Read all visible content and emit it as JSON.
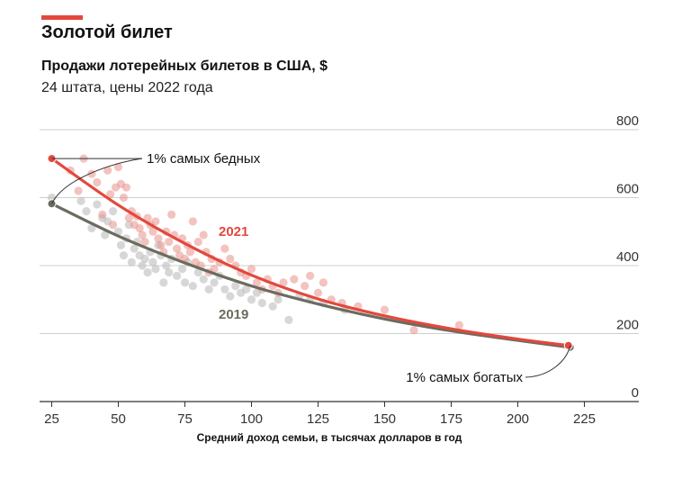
{
  "header": {
    "kicker": "Золотой билет",
    "title": "Продажи лотерейных билетов в США, $",
    "subtitle": "24 штата, цены 2022 года"
  },
  "colors": {
    "accent": "#e3483d",
    "series_2021": "#e3483d",
    "series_2019": "#6b6b5f",
    "scatter_2021": "#e8928a",
    "scatter_2019": "#bdbdbd",
    "grid": "#cfcfcf",
    "axis": "#333333"
  },
  "chart_data": {
    "type": "scatter",
    "title": "Продажи лотерейных билетов в США, $",
    "subtitle": "24 штата, цены 2022 года",
    "xlabel": "Средний доход семьи, в тысячах долларов в год",
    "ylabel": "",
    "xlim": [
      22,
      240
    ],
    "ylim": [
      0,
      800
    ],
    "x_ticks": [
      25,
      50,
      75,
      100,
      125,
      150,
      175,
      200,
      225
    ],
    "y_ticks": [
      0,
      200,
      400,
      600,
      800
    ],
    "grid": "horizontal",
    "series": [
      {
        "name": "2021",
        "kind": "trend",
        "points": [
          [
            25,
            715
          ],
          [
            50,
            578
          ],
          [
            75,
            465
          ],
          [
            100,
            372
          ],
          [
            125,
            302
          ],
          [
            150,
            252
          ],
          [
            175,
            214
          ],
          [
            200,
            184
          ],
          [
            219,
            165
          ]
        ]
      },
      {
        "name": "2019",
        "kind": "trend",
        "points": [
          [
            25,
            582
          ],
          [
            50,
            487
          ],
          [
            75,
            408
          ],
          [
            100,
            340
          ],
          [
            125,
            287
          ],
          [
            150,
            243
          ],
          [
            175,
            208
          ],
          [
            200,
            180
          ],
          [
            219,
            160
          ]
        ]
      },
      {
        "name": "2021",
        "kind": "points",
        "points": [
          [
            32,
            680
          ],
          [
            35,
            620
          ],
          [
            37,
            715
          ],
          [
            40,
            670
          ],
          [
            42,
            645
          ],
          [
            44,
            550
          ],
          [
            46,
            680
          ],
          [
            47,
            610
          ],
          [
            48,
            520
          ],
          [
            49,
            630
          ],
          [
            50,
            690
          ],
          [
            51,
            640
          ],
          [
            52,
            600
          ],
          [
            53,
            630
          ],
          [
            54,
            540
          ],
          [
            55,
            560
          ],
          [
            56,
            520
          ],
          [
            57,
            545
          ],
          [
            58,
            510
          ],
          [
            59,
            490
          ],
          [
            60,
            470
          ],
          [
            61,
            540
          ],
          [
            62,
            520
          ],
          [
            63,
            500
          ],
          [
            64,
            530
          ],
          [
            65,
            480
          ],
          [
            66,
            460
          ],
          [
            67,
            440
          ],
          [
            68,
            500
          ],
          [
            69,
            470
          ],
          [
            70,
            550
          ],
          [
            71,
            490
          ],
          [
            72,
            450
          ],
          [
            73,
            430
          ],
          [
            74,
            480
          ],
          [
            75,
            420
          ],
          [
            76,
            460
          ],
          [
            77,
            440
          ],
          [
            78,
            530
          ],
          [
            79,
            410
          ],
          [
            80,
            470
          ],
          [
            81,
            400
          ],
          [
            82,
            490
          ],
          [
            83,
            440
          ],
          [
            84,
            380
          ],
          [
            85,
            420
          ],
          [
            86,
            390
          ],
          [
            88,
            410
          ],
          [
            90,
            450
          ],
          [
            92,
            420
          ],
          [
            94,
            400
          ],
          [
            96,
            380
          ],
          [
            98,
            370
          ],
          [
            100,
            390
          ],
          [
            102,
            350
          ],
          [
            104,
            330
          ],
          [
            106,
            360
          ],
          [
            108,
            340
          ],
          [
            110,
            320
          ],
          [
            112,
            350
          ],
          [
            116,
            360
          ],
          [
            120,
            340
          ],
          [
            122,
            370
          ],
          [
            125,
            320
          ],
          [
            127,
            350
          ],
          [
            130,
            300
          ],
          [
            134,
            290
          ],
          [
            140,
            280
          ],
          [
            150,
            270
          ],
          [
            161,
            210
          ],
          [
            178,
            225
          ]
        ]
      },
      {
        "name": "2019",
        "kind": "points",
        "points": [
          [
            25,
            600
          ],
          [
            36,
            590
          ],
          [
            38,
            560
          ],
          [
            40,
            510
          ],
          [
            42,
            580
          ],
          [
            44,
            540
          ],
          [
            45,
            490
          ],
          [
            46,
            530
          ],
          [
            48,
            560
          ],
          [
            50,
            500
          ],
          [
            51,
            460
          ],
          [
            52,
            430
          ],
          [
            53,
            480
          ],
          [
            54,
            520
          ],
          [
            55,
            410
          ],
          [
            56,
            450
          ],
          [
            57,
            470
          ],
          [
            58,
            430
          ],
          [
            59,
            400
          ],
          [
            60,
            420
          ],
          [
            61,
            380
          ],
          [
            62,
            440
          ],
          [
            63,
            410
          ],
          [
            64,
            390
          ],
          [
            65,
            460
          ],
          [
            66,
            430
          ],
          [
            67,
            350
          ],
          [
            68,
            400
          ],
          [
            69,
            380
          ],
          [
            70,
            420
          ],
          [
            72,
            370
          ],
          [
            74,
            390
          ],
          [
            75,
            350
          ],
          [
            76,
            410
          ],
          [
            78,
            340
          ],
          [
            80,
            380
          ],
          [
            82,
            360
          ],
          [
            84,
            330
          ],
          [
            86,
            350
          ],
          [
            88,
            370
          ],
          [
            90,
            330
          ],
          [
            92,
            310
          ],
          [
            94,
            340
          ],
          [
            96,
            320
          ],
          [
            98,
            330
          ],
          [
            100,
            300
          ],
          [
            102,
            320
          ],
          [
            104,
            290
          ],
          [
            108,
            280
          ],
          [
            110,
            300
          ],
          [
            114,
            240
          ],
          [
            118,
            310
          ],
          [
            122,
            300
          ],
          [
            127,
            290
          ],
          [
            135,
            270
          ]
        ]
      }
    ],
    "annotations": [
      {
        "text": "1% самых бедных",
        "x": 25,
        "y": 715
      },
      {
        "text": "1% самых богатых",
        "x": 219,
        "y": 165
      }
    ],
    "labels": [
      {
        "text": "2021",
        "series": "2021"
      },
      {
        "text": "2019",
        "series": "2019"
      }
    ]
  }
}
